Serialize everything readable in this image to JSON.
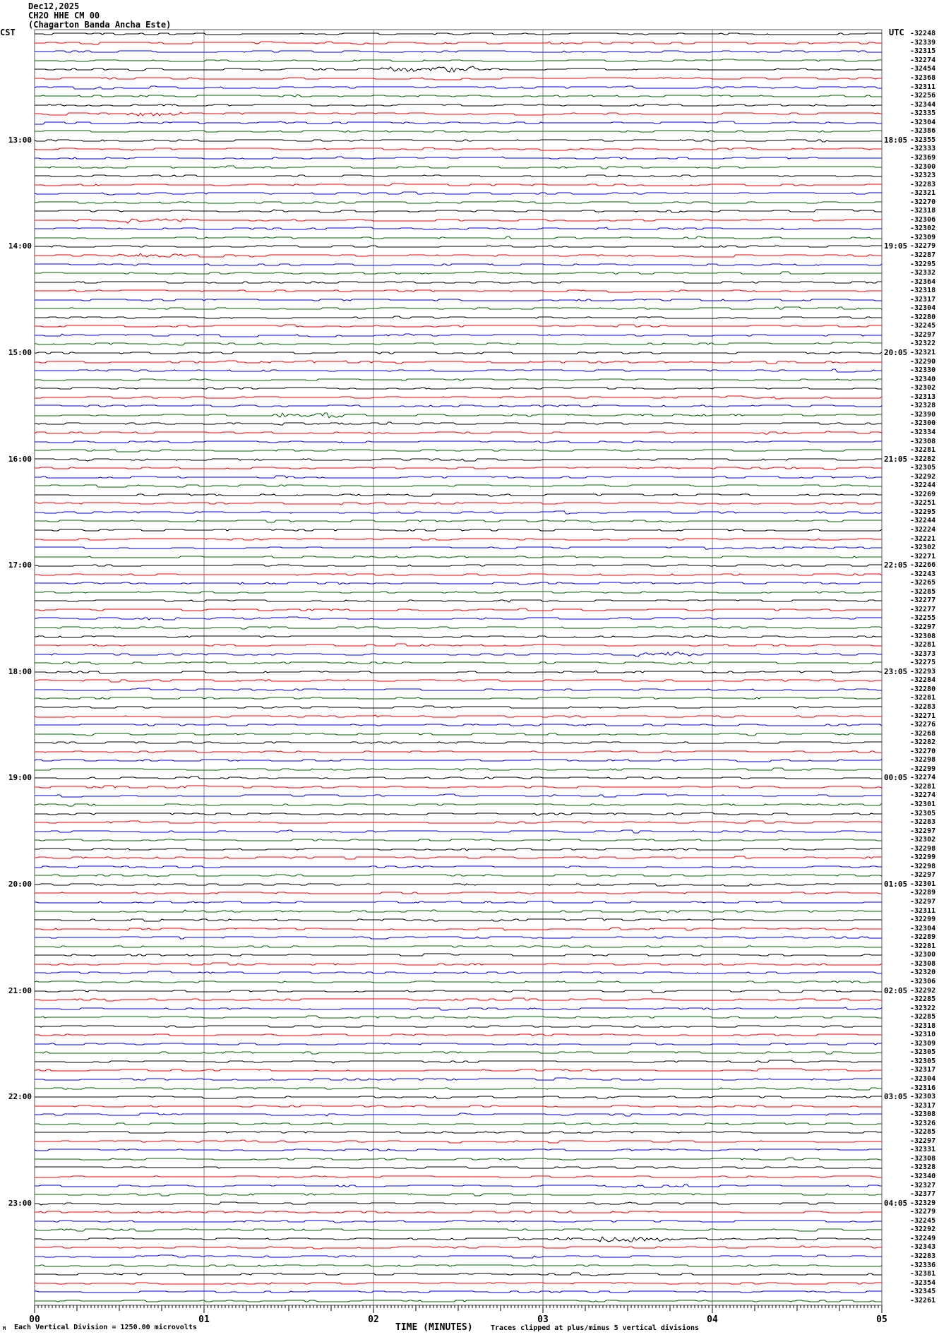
{
  "header": {
    "date": "Dec12,2025",
    "station": "CH2O HHE CM 00",
    "location": "(Chagarton Banda Ancha Este)"
  },
  "left_axis_label": "CST",
  "right_axis_label": "UTC",
  "footer": {
    "corner_glyph": "M",
    "scale_note": "Each Vertical Division = 1250.00 microvolts",
    "axis_title": "TIME (MINUTES)",
    "clip_note": "Traces clipped at plus/minus 5 vertical divisions"
  },
  "colors": {
    "trace_cycle": [
      "#000000",
      "#ff0000",
      "#0000ff",
      "#006400"
    ],
    "grid": "#808080",
    "border": "#555555",
    "text": "#000000"
  },
  "chart_data": {
    "type": "line",
    "subtype": "helicorder-seismogram",
    "title": "CH2O HHE CM 00 (Chagarton Banda Ancha Este) Dec12,2025",
    "xlabel": "TIME (MINUTES)",
    "x_range": [
      0,
      5
    ],
    "x_tick_labels": [
      "00",
      "01",
      "02",
      "03",
      "04",
      "05"
    ],
    "rows": 144,
    "minutes_per_row": 5,
    "trace_color_cycle": [
      "black",
      "red",
      "blue",
      "green"
    ],
    "left_hour_labels": [
      {
        "row": 13,
        "label": "13:00"
      },
      {
        "row": 25,
        "label": "14:00"
      },
      {
        "row": 37,
        "label": "15:00"
      },
      {
        "row": 49,
        "label": "16:00"
      },
      {
        "row": 61,
        "label": "17:00"
      },
      {
        "row": 73,
        "label": "18:00"
      },
      {
        "row": 85,
        "label": "19:00"
      },
      {
        "row": 97,
        "label": "20:00"
      },
      {
        "row": 109,
        "label": "21:00"
      },
      {
        "row": 121,
        "label": "22:00"
      },
      {
        "row": 133,
        "label": "23:00"
      }
    ],
    "right_hour_labels": [
      {
        "row": 13,
        "label": "18:05"
      },
      {
        "row": 25,
        "label": "19:05"
      },
      {
        "row": 37,
        "label": "20:05"
      },
      {
        "row": 49,
        "label": "21:05"
      },
      {
        "row": 61,
        "label": "22:05"
      },
      {
        "row": 73,
        "label": "23:05"
      },
      {
        "row": 85,
        "label": "00:05"
      },
      {
        "row": 97,
        "label": "01:05"
      },
      {
        "row": 109,
        "label": "02:05"
      },
      {
        "row": 121,
        "label": "03:05"
      },
      {
        "row": 133,
        "label": "04:05"
      }
    ],
    "row_offsets": [
      -32248,
      -32339,
      -32315,
      -32274,
      -32454,
      -32368,
      -32311,
      -32256,
      -32344,
      -32335,
      -32304,
      -32386,
      -32355,
      -32333,
      -32369,
      -32300,
      -32323,
      -32283,
      -32321,
      -32270,
      -32318,
      -32306,
      -32302,
      -32309,
      -32279,
      -32287,
      -32295,
      -32332,
      -32364,
      -32318,
      -32317,
      -32304,
      -32280,
      -32245,
      -32297,
      -32322,
      -32321,
      -32290,
      -32330,
      -32340,
      -32302,
      -32313,
      -32328,
      -32390,
      -32300,
      -32334,
      -32308,
      -32281,
      -32282,
      -32305,
      -32292,
      -32244,
      -32269,
      -32251,
      -32295,
      -32244,
      -32224,
      -32221,
      -32302,
      -32271,
      -32266,
      -32243,
      -32265,
      -32285,
      -32277,
      -32277,
      -32255,
      -32297,
      -32308,
      -32281,
      -32373,
      -32275,
      -32293,
      -32284,
      -32280,
      -32281,
      -32283,
      -32271,
      -32276,
      -32268,
      -32282,
      -32270,
      -32298,
      -32299,
      -32274,
      -32281,
      -32274,
      -32301,
      -32305,
      -32283,
      -32297,
      -32302,
      -32298,
      -32299,
      -32298,
      -32297,
      -32301,
      -32289,
      -32297,
      -32311,
      -32299,
      -32304,
      -32289,
      -32281,
      -32300,
      -32308,
      -32320,
      -32306,
      -32292,
      -32285,
      -32322,
      -32285,
      -32318,
      -32310,
      -32309,
      -32305,
      -32305,
      -32317,
      -32304,
      -32316,
      -32303,
      -32317,
      -32308,
      -32326,
      -32285,
      -32297,
      -32331,
      -32308,
      -32328,
      -32340,
      -32327,
      -32377,
      -32329,
      -32279,
      -32245,
      -32292,
      -32249,
      -32343,
      -32283,
      -32336,
      -32381,
      -32354,
      -32345,
      -32261
    ],
    "notable_bursts": [
      {
        "row": 5,
        "min": 2.05,
        "dur": 0.55,
        "amp": 3
      },
      {
        "row": 10,
        "min": 0.55,
        "dur": 0.35,
        "amp": 2
      },
      {
        "row": 22,
        "min": 0.55,
        "dur": 0.35,
        "amp": 2
      },
      {
        "row": 26,
        "min": 0.45,
        "dur": 0.45,
        "amp": 2
      },
      {
        "row": 44,
        "min": 1.45,
        "dur": 0.4,
        "amp": 3
      },
      {
        "row": 71,
        "min": 3.55,
        "dur": 0.35,
        "amp": 2
      },
      {
        "row": 137,
        "min": 3.3,
        "dur": 0.45,
        "amp": 3
      }
    ],
    "legend_position": "none",
    "grid": "vertical-minute-lines"
  }
}
